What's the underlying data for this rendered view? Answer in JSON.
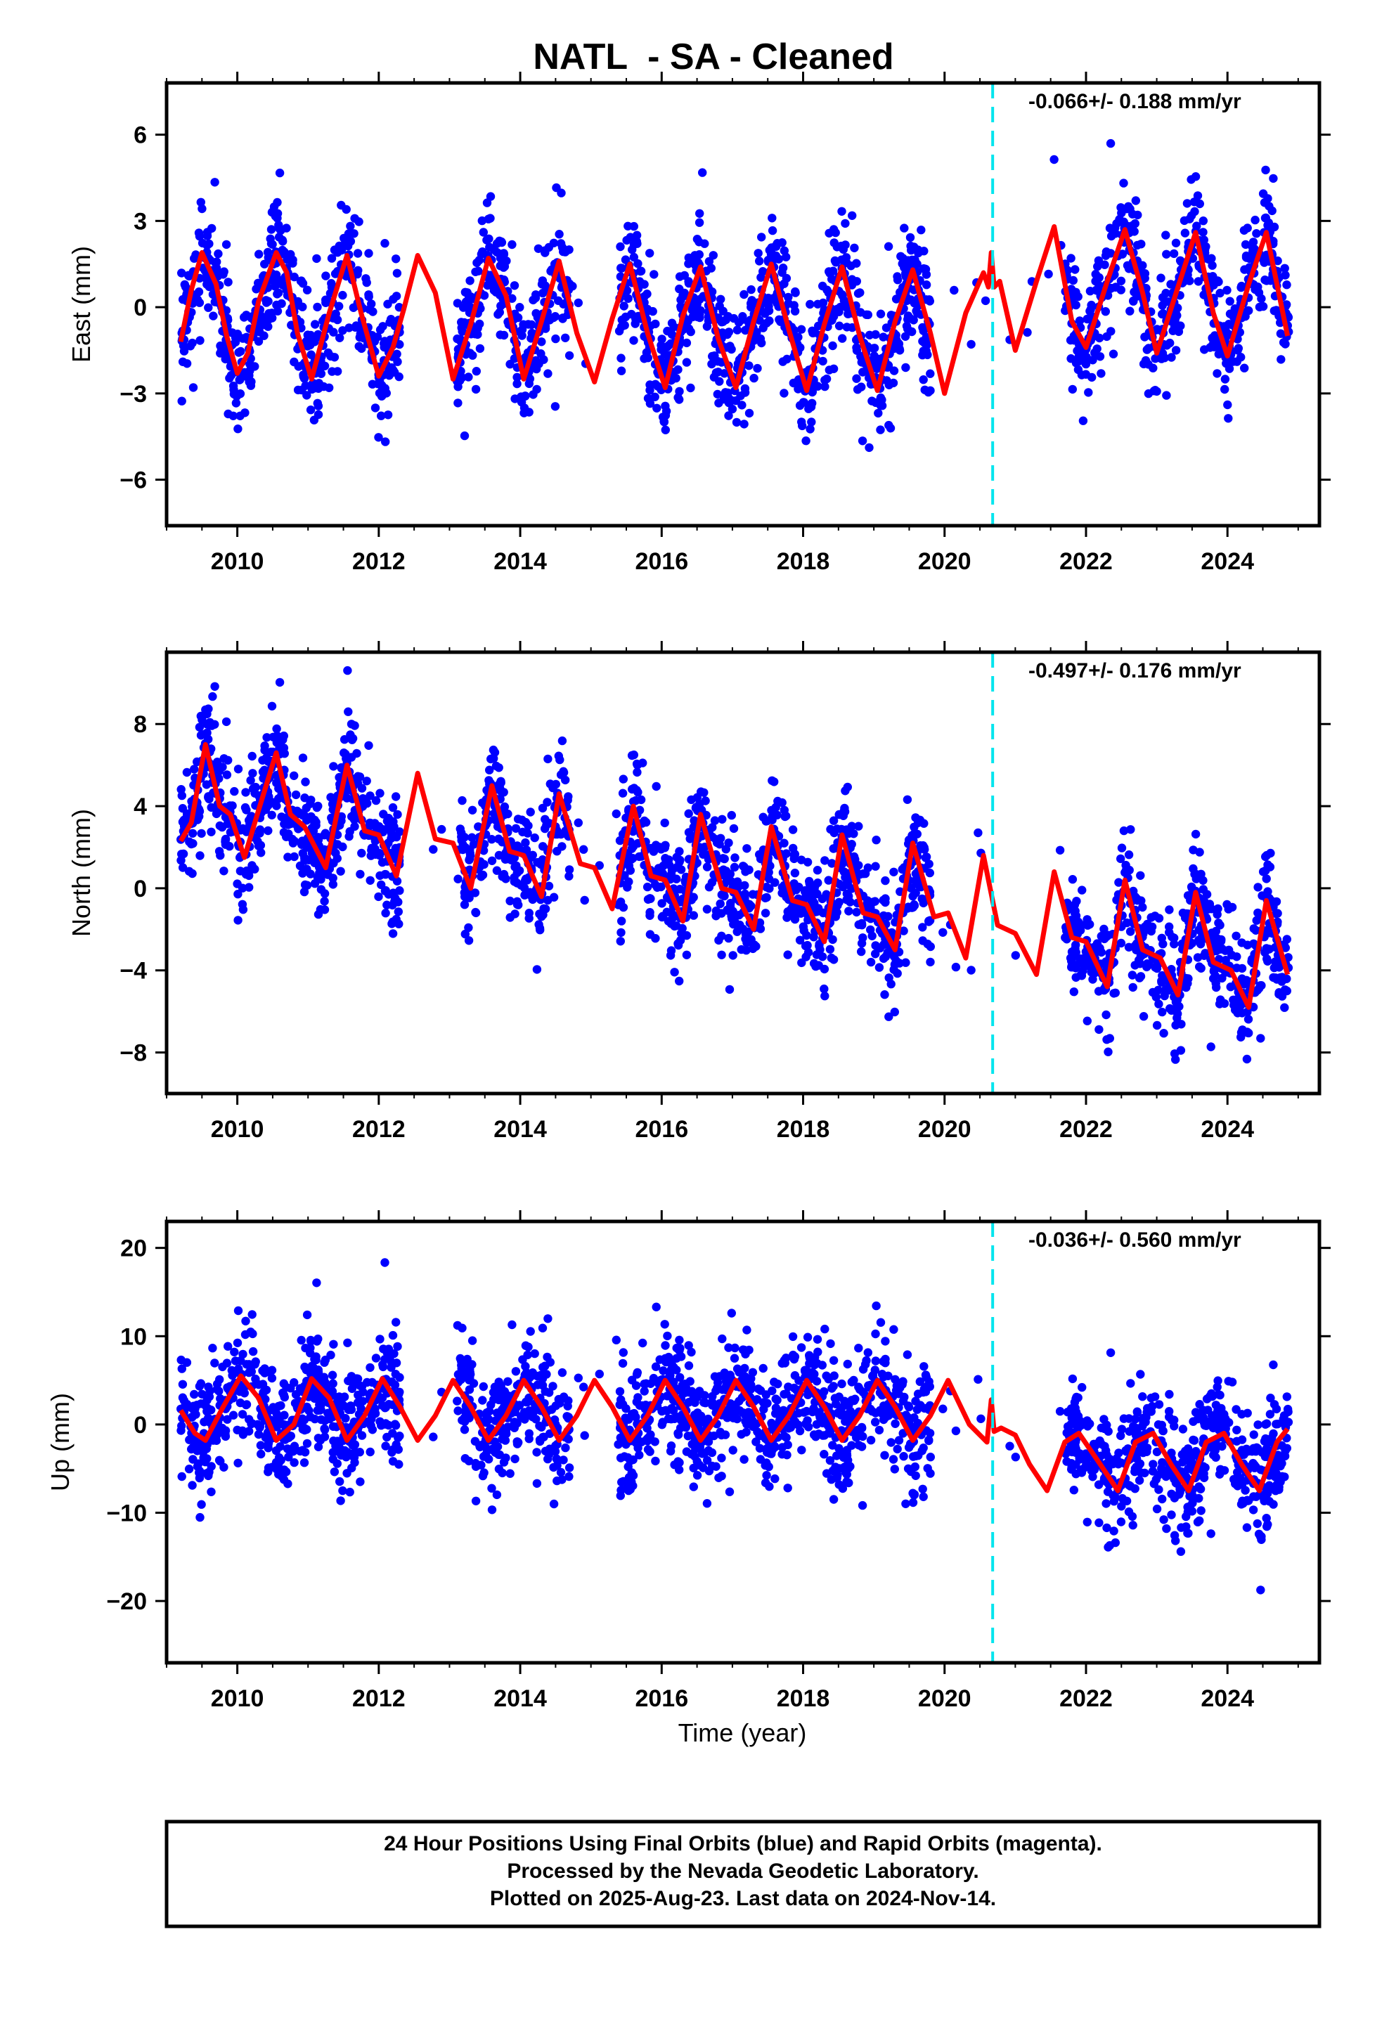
{
  "page": {
    "title": "NATL  - SA - Cleaned",
    "footer": {
      "lines": [
        "24 Hour Positions Using Final Orbits (blue) and Rapid Orbits (magenta).",
        "Processed by the Nevada Geodetic Laboratory.",
        "Plotted on 2025-Aug-23. Last data on 2024-Nov-14."
      ]
    },
    "colors": {
      "data": "#0000ff",
      "model": "#ff0000",
      "step": "#00e5ee",
      "frame": "#000000"
    }
  },
  "chart_data": [
    {
      "type": "scatter",
      "title": "",
      "ylabel": "East (mm)",
      "xlabel": "",
      "xlim": [
        2009.0,
        2025.3
      ],
      "ylim": [
        -7.6,
        7.8
      ],
      "xticks": [
        2010,
        2012,
        2014,
        2016,
        2018,
        2020,
        2022,
        2024
      ],
      "xtick_labels": [
        "2010",
        "2012",
        "2014",
        "2016",
        "2018",
        "2020",
        "2022",
        "2024"
      ],
      "yticks": [
        -6,
        -3,
        0,
        3,
        6
      ],
      "ytick_labels": [
        "−6",
        "−3",
        "0",
        "3",
        "6"
      ],
      "rate_label": "-0.066+/- 0.188 mm/yr",
      "step_epoch": 2020.68,
      "data_gaps": [
        [
          2012.3,
          2013.1
        ],
        [
          2014.7,
          2015.4
        ],
        [
          2019.8,
          2021.7
        ]
      ],
      "series": [
        {
          "role": "model",
          "x": [
            2009.2,
            2009.35,
            2009.5,
            2009.7,
            2009.85,
            2010.0,
            2010.15,
            2010.3,
            2010.55,
            2010.7,
            2010.85,
            2011.05,
            2011.3,
            2011.55,
            2011.75,
            2012.0,
            2012.2,
            2012.35,
            2012.55,
            2012.8,
            2013.05,
            2013.3,
            2013.55,
            2013.8,
            2014.05,
            2014.3,
            2014.55,
            2014.8,
            2015.05,
            2015.3,
            2015.55,
            2015.8,
            2016.05,
            2016.3,
            2016.55,
            2016.8,
            2017.05,
            2017.3,
            2017.55,
            2017.8,
            2018.05,
            2018.3,
            2018.55,
            2018.8,
            2019.05,
            2019.3,
            2019.55,
            2019.8,
            2020.0,
            2020.3,
            2020.55,
            2020.62,
            2020.66,
            2020.7,
            2020.78,
            2021.0,
            2021.3,
            2021.55,
            2021.8,
            2022.0,
            2022.3,
            2022.55,
            2022.8,
            2023.0,
            2023.3,
            2023.55,
            2023.8,
            2024.0,
            2024.3,
            2024.55,
            2024.85
          ],
          "y": [
            -1.2,
            0.6,
            1.9,
            0.8,
            -1.0,
            -2.3,
            -1.6,
            0.2,
            1.9,
            1.2,
            -0.9,
            -2.5,
            -0.2,
            1.8,
            -0.2,
            -2.4,
            -1.4,
            -0.1,
            1.8,
            0.5,
            -2.5,
            -0.6,
            1.7,
            0.4,
            -2.5,
            -0.5,
            1.6,
            -0.9,
            -2.6,
            -0.4,
            1.5,
            -0.9,
            -2.8,
            -0.3,
            1.4,
            -1.1,
            -2.8,
            -0.5,
            1.5,
            -0.8,
            -2.9,
            -0.6,
            1.4,
            -1.0,
            -2.9,
            -0.5,
            1.3,
            -0.9,
            -3.0,
            -0.2,
            1.2,
            0.7,
            1.9,
            0.7,
            0.9,
            -1.5,
            0.9,
            2.8,
            -0.5,
            -1.4,
            0.9,
            2.7,
            0.5,
            -1.6,
            0.7,
            2.6,
            -0.2,
            -1.7,
            0.8,
            2.6,
            -1.0
          ]
        }
      ]
    },
    {
      "type": "scatter",
      "title": "",
      "ylabel": "North (mm)",
      "xlabel": "",
      "xlim": [
        2009.0,
        2025.3
      ],
      "ylim": [
        -10.0,
        11.5
      ],
      "xticks": [
        2010,
        2012,
        2014,
        2016,
        2018,
        2020,
        2022,
        2024
      ],
      "xtick_labels": [
        "2010",
        "2012",
        "2014",
        "2016",
        "2018",
        "2020",
        "2022",
        "2024"
      ],
      "yticks": [
        -8,
        -4,
        0,
        4,
        8
      ],
      "ytick_labels": [
        "−8",
        "−4",
        "0",
        "4",
        "8"
      ],
      "rate_label": "-0.497+/- 0.176 mm/yr",
      "step_epoch": 2020.68,
      "data_gaps": [
        [
          2012.3,
          2013.1
        ],
        [
          2014.7,
          2015.4
        ],
        [
          2019.8,
          2021.7
        ]
      ],
      "series": [
        {
          "role": "model",
          "x": [
            2009.2,
            2009.35,
            2009.55,
            2009.75,
            2009.9,
            2010.1,
            2010.3,
            2010.55,
            2010.75,
            2010.95,
            2011.25,
            2011.55,
            2011.8,
            2012.0,
            2012.25,
            2012.55,
            2012.8,
            2013.05,
            2013.3,
            2013.6,
            2013.85,
            2014.05,
            2014.3,
            2014.55,
            2014.85,
            2015.05,
            2015.3,
            2015.6,
            2015.85,
            2016.05,
            2016.3,
            2016.55,
            2016.85,
            2017.05,
            2017.3,
            2017.55,
            2017.85,
            2018.05,
            2018.3,
            2018.55,
            2018.85,
            2019.05,
            2019.3,
            2019.55,
            2019.85,
            2020.05,
            2020.3,
            2020.55,
            2020.75,
            2021.0,
            2021.3,
            2021.55,
            2021.8,
            2022.0,
            2022.3,
            2022.55,
            2022.8,
            2023.05,
            2023.3,
            2023.55,
            2023.8,
            2024.05,
            2024.3,
            2024.55,
            2024.85
          ],
          "y": [
            2.3,
            3.2,
            7.0,
            4.0,
            3.6,
            1.5,
            3.8,
            6.6,
            3.6,
            3.0,
            1.0,
            6.0,
            2.8,
            2.6,
            0.6,
            5.6,
            2.4,
            2.2,
            0.0,
            5.0,
            1.8,
            1.6,
            -0.4,
            4.6,
            1.2,
            1.0,
            -1.0,
            4.0,
            0.6,
            0.4,
            -1.6,
            3.6,
            0.0,
            -0.2,
            -2.0,
            3.0,
            -0.6,
            -0.8,
            -2.6,
            2.6,
            -1.2,
            -1.4,
            -3.0,
            2.2,
            -1.4,
            -1.2,
            -3.4,
            1.6,
            -1.8,
            -2.2,
            -4.2,
            0.8,
            -2.4,
            -2.6,
            -4.8,
            0.4,
            -3.0,
            -3.4,
            -5.2,
            -0.2,
            -3.6,
            -4.0,
            -5.8,
            -0.6,
            -4.2
          ]
        }
      ]
    },
    {
      "type": "scatter",
      "title": "",
      "ylabel": "Up (mm)",
      "xlabel": "Time (year)",
      "xlim": [
        2009.0,
        2025.3
      ],
      "ylim": [
        -27.0,
        23.0
      ],
      "xticks": [
        2010,
        2012,
        2014,
        2016,
        2018,
        2020,
        2022,
        2024
      ],
      "xtick_labels": [
        "2010",
        "2012",
        "2014",
        "2016",
        "2018",
        "2020",
        "2022",
        "2024"
      ],
      "yticks": [
        -20,
        -10,
        0,
        10,
        20
      ],
      "ytick_labels": [
        "−20",
        "−10",
        "0",
        "10",
        "20"
      ],
      "rate_label": "-0.036+/- 0.560 mm/yr",
      "step_epoch": 2020.68,
      "data_gaps": [
        [
          2012.3,
          2013.1
        ],
        [
          2014.7,
          2015.4
        ],
        [
          2019.8,
          2021.7
        ]
      ],
      "series": [
        {
          "role": "model",
          "x": [
            2009.2,
            2009.4,
            2009.55,
            2009.8,
            2010.05,
            2010.3,
            2010.55,
            2010.8,
            2011.05,
            2011.3,
            2011.55,
            2011.8,
            2012.05,
            2012.3,
            2012.55,
            2012.8,
            2013.05,
            2013.3,
            2013.55,
            2013.8,
            2014.05,
            2014.3,
            2014.55,
            2014.8,
            2015.05,
            2015.3,
            2015.55,
            2015.8,
            2016.05,
            2016.3,
            2016.55,
            2016.8,
            2017.05,
            2017.3,
            2017.55,
            2017.8,
            2018.05,
            2018.3,
            2018.55,
            2018.8,
            2019.05,
            2019.3,
            2019.55,
            2019.8,
            2020.05,
            2020.35,
            2020.6,
            2020.66,
            2020.7,
            2020.8,
            2021.0,
            2021.2,
            2021.45,
            2021.7,
            2021.9,
            2022.2,
            2022.45,
            2022.7,
            2022.95,
            2023.2,
            2023.45,
            2023.7,
            2023.95,
            2024.2,
            2024.45,
            2024.7,
            2024.85
          ],
          "y": [
            1.6,
            -1.0,
            -1.8,
            2.0,
            5.5,
            3.0,
            -1.8,
            0.0,
            5.2,
            3.0,
            -1.8,
            1.0,
            5.2,
            2.0,
            -1.8,
            1.0,
            5.0,
            2.0,
            -1.8,
            1.0,
            5.0,
            2.0,
            -1.8,
            1.0,
            5.0,
            2.0,
            -1.8,
            1.0,
            5.0,
            2.0,
            -1.8,
            1.0,
            5.0,
            2.0,
            -1.8,
            1.0,
            5.0,
            2.0,
            -1.8,
            1.0,
            5.0,
            2.0,
            -1.8,
            1.0,
            5.0,
            0.0,
            -2.0,
            2.8,
            -0.8,
            -0.4,
            -1.2,
            -4.5,
            -7.5,
            -2.0,
            -1.0,
            -4.5,
            -7.5,
            -2.0,
            -1.0,
            -4.5,
            -7.5,
            -2.0,
            -1.0,
            -4.5,
            -7.5,
            -2.0,
            -0.5
          ]
        }
      ]
    }
  ]
}
